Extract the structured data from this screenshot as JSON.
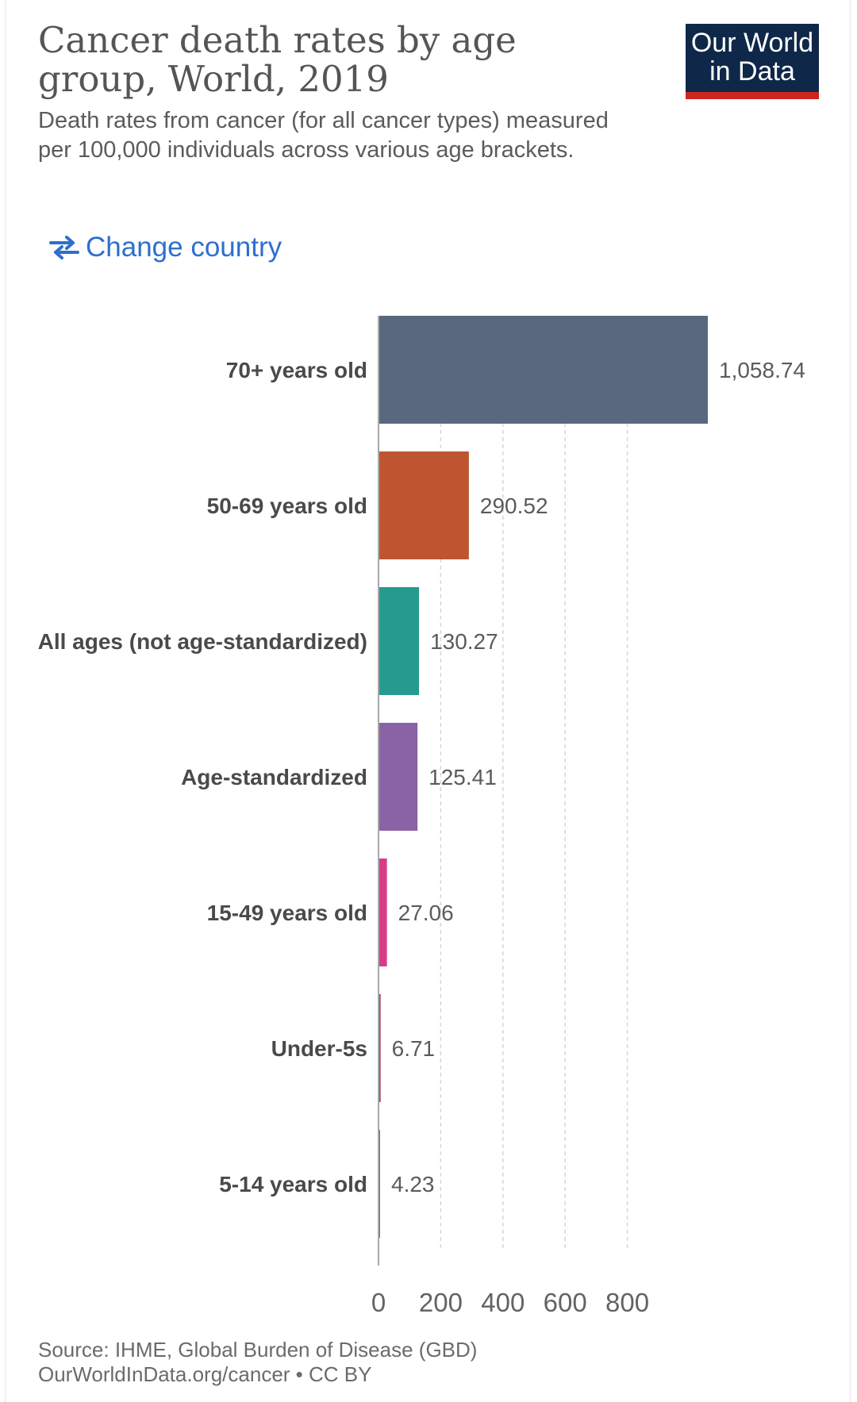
{
  "header": {
    "title": "Cancer death rates by age group, World, 2019",
    "subtitle": "Death rates from cancer (for all cancer types) measured per 100,000 individuals across various age brackets."
  },
  "logo": {
    "text": "Our World in Data",
    "bg_color": "#0f2849",
    "accent_color": "#ce261e"
  },
  "controls": {
    "change_country_label": "Change country",
    "icon": "swap-arrows-icon"
  },
  "chart_data": {
    "type": "bar",
    "orientation": "horizontal",
    "categories": [
      "70+ years old",
      "50-69 years old",
      "All ages (not age-standardized)",
      "Age-standardized",
      "15-49 years old",
      "Under-5s",
      "5-14 years old"
    ],
    "values": [
      1058.74,
      290.52,
      130.27,
      125.41,
      27.06,
      6.71,
      4.23
    ],
    "value_labels": [
      "1,058.74",
      "290.52",
      "130.27",
      "125.41",
      "27.06",
      "6.71",
      "4.23"
    ],
    "colors": [
      "#59687f",
      "#bd5630",
      "#269a8f",
      "#8963a6",
      "#d73c87",
      "#a2445a",
      "#3b8e66"
    ],
    "x_ticks": [
      0,
      200,
      400,
      600,
      800
    ],
    "xlim": [
      0,
      1058.74
    ],
    "grid": true
  },
  "footer": {
    "source": "Source: IHME, Global Burden of Disease (GBD)",
    "link": "OurWorldInData.org/cancer • CC BY"
  }
}
